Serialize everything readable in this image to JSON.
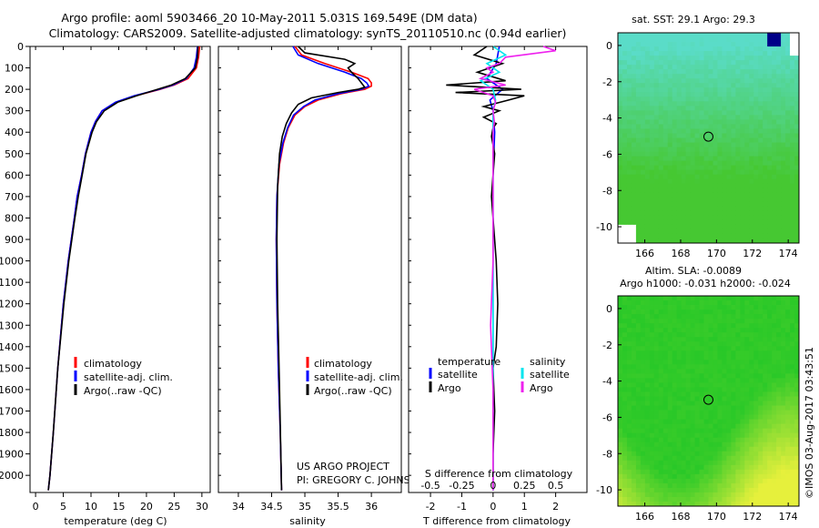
{
  "header": {
    "title_line1": "Argo profile: aoml 5903466_20 10-May-2011 5.031S 169.549E (DM data)",
    "title_line2": "Climatology: CARS2009. Satellite-adjusted climatology: synTS_20110510.nc (0.94d earlier)"
  },
  "colors": {
    "climatology": "#ff0000",
    "satellite_adj": "#0000ff",
    "argo": "#000000",
    "satellite_diff_salinity": "#00e5ee",
    "argo_diff_salinity": "#ee22ee"
  },
  "chart_data": [
    {
      "id": "temperature",
      "type": "line",
      "xlabel": "temperature (deg C)",
      "ylabel": "",
      "xlim": [
        -1,
        31.5
      ],
      "ylim": [
        2080,
        0
      ],
      "xticks": [
        0,
        5,
        10,
        15,
        20,
        25,
        30
      ],
      "xtick_labels": [
        "0",
        "5",
        "10",
        "15",
        "20",
        "25",
        "30"
      ],
      "yticks": [
        0,
        100,
        200,
        300,
        400,
        500,
        600,
        700,
        800,
        900,
        1000,
        1100,
        1200,
        1300,
        1400,
        1500,
        1600,
        1700,
        1800,
        1900,
        2000
      ],
      "ytick_labels": [
        "0",
        "100",
        "200",
        "300",
        "400",
        "500",
        "600",
        "700",
        "800",
        "900",
        "1000",
        "1100",
        "1200",
        "1300",
        "1400",
        "1500",
        "1600",
        "1700",
        "1800",
        "1900",
        "2000"
      ],
      "legend": [
        "climatology",
        "satellite-adj. clim.",
        "Argo(..raw -QC)"
      ],
      "series": [
        {
          "name": "climatology",
          "color": "#ff0000",
          "depth": [
            0,
            50,
            100,
            150,
            180,
            200,
            230,
            260,
            300,
            350,
            400,
            500,
            600,
            700,
            800,
            1000,
            1200,
            1500,
            1800,
            2000,
            2070
          ],
          "values": [
            29.6,
            29.4,
            29.0,
            27.5,
            25.0,
            22.5,
            18.0,
            14.5,
            12.0,
            10.8,
            10.0,
            9.0,
            8.3,
            7.5,
            7.0,
            5.9,
            5.0,
            4.0,
            3.2,
            2.6,
            2.3
          ]
        },
        {
          "name": "satellite-adj. clim.",
          "color": "#0000ff",
          "depth": [
            0,
            50,
            100,
            150,
            180,
            200,
            230,
            260,
            300,
            350,
            400,
            500,
            600,
            700,
            800,
            1000,
            1200,
            1500,
            1800,
            2000,
            2070
          ],
          "values": [
            29.2,
            29.0,
            28.6,
            27.2,
            24.8,
            22.3,
            17.8,
            14.4,
            12.0,
            10.8,
            10.0,
            9.0,
            8.3,
            7.5,
            7.0,
            5.9,
            5.0,
            4.0,
            3.2,
            2.6,
            2.3
          ]
        },
        {
          "name": "Argo(..raw -QC)",
          "color": "#000000",
          "depth": [
            0,
            50,
            100,
            150,
            180,
            200,
            230,
            260,
            300,
            350,
            400,
            500,
            600,
            700,
            800,
            1000,
            1200,
            1500,
            1800,
            2000,
            2070
          ],
          "values": [
            29.3,
            29.2,
            28.8,
            27.0,
            24.5,
            22.0,
            18.2,
            14.8,
            12.4,
            11.0,
            10.2,
            9.1,
            8.4,
            7.7,
            7.1,
            6.0,
            5.1,
            4.0,
            3.2,
            2.6,
            2.3
          ]
        }
      ]
    },
    {
      "id": "salinity",
      "type": "line",
      "xlabel": "salinity",
      "xlim": [
        33.7,
        36.45
      ],
      "ylim": [
        2080,
        0
      ],
      "xticks": [
        34,
        34.5,
        35,
        35.5,
        36
      ],
      "xtick_labels": [
        "34",
        "34.5",
        "35",
        "35.5",
        "36"
      ],
      "legend": [
        "climatology",
        "satellite-adj. clim.",
        "Argo(..raw -QC)"
      ],
      "annotation_line1": "US ARGO PROJECT",
      "annotation_line2": "PI: GREGORY C. JOHNSON",
      "series": [
        {
          "name": "climatology",
          "color": "#ff0000",
          "depth": [
            0,
            40,
            80,
            120,
            150,
            170,
            185,
            200,
            220,
            250,
            280,
            320,
            380,
            450,
            550,
            700,
            900,
            1200,
            1500,
            1800,
            2070
          ],
          "values": [
            34.85,
            34.95,
            35.3,
            35.7,
            35.95,
            36.0,
            36.0,
            35.9,
            35.55,
            35.2,
            35.0,
            34.85,
            34.75,
            34.68,
            34.62,
            34.58,
            34.57,
            34.58,
            34.6,
            34.63,
            34.65
          ]
        },
        {
          "name": "satellite-adj. clim.",
          "color": "#0000ff",
          "depth": [
            0,
            40,
            80,
            120,
            150,
            170,
            185,
            200,
            220,
            250,
            280,
            320,
            380,
            450,
            550,
            700,
            900,
            1200,
            1500,
            1800,
            2070
          ],
          "values": [
            34.82,
            34.9,
            35.2,
            35.6,
            35.85,
            35.93,
            35.96,
            35.85,
            35.5,
            35.15,
            34.98,
            34.83,
            34.74,
            34.67,
            34.61,
            34.58,
            34.57,
            34.58,
            34.6,
            34.63,
            34.65
          ]
        },
        {
          "name": "Argo(..raw -QC)",
          "color": "#000000",
          "depth": [
            0,
            30,
            60,
            80,
            100,
            120,
            150,
            170,
            190,
            200,
            215,
            240,
            270,
            310,
            360,
            420,
            500,
            650,
            900,
            1200,
            1600,
            2070
          ],
          "values": [
            34.9,
            35.0,
            35.6,
            35.75,
            35.65,
            35.7,
            35.8,
            35.85,
            35.9,
            35.8,
            35.5,
            35.1,
            34.9,
            34.8,
            34.72,
            34.66,
            34.62,
            34.59,
            34.58,
            34.59,
            34.62,
            34.65
          ]
        }
      ]
    },
    {
      "id": "differences",
      "type": "line",
      "xlabel": "T difference from climatology",
      "xlabel_top": "S difference from climatology",
      "xlim": [
        -2.7,
        3.0
      ],
      "ylim": [
        2080,
        0
      ],
      "xticks": [
        -2,
        -1,
        0,
        1,
        2
      ],
      "xtick_labels": [
        "-2",
        "-1",
        "0",
        "1",
        "2"
      ],
      "sticks": [
        -0.5,
        -0.25,
        0,
        0.25,
        0.5
      ],
      "stick_labels": [
        "-0.5",
        "-0.25",
        "0",
        "0.25",
        "0.5"
      ],
      "legend_temp_title": "temperature",
      "legend_sal_title": "salinity",
      "legend_temp": [
        "satellite",
        "Argo"
      ],
      "legend_sal": [
        "satellite",
        "Argo"
      ],
      "series": [
        {
          "name": "T satellite",
          "color": "#0000ff",
          "depth": [
            0,
            80,
            150,
            200,
            250,
            300,
            400,
            600,
            1000,
            1500,
            2070
          ],
          "values": [
            0.2,
            0.1,
            -0.2,
            0.3,
            -0.1,
            0.0,
            0.05,
            0.0,
            0.0,
            0.0,
            0.0
          ]
        },
        {
          "name": "T Argo",
          "color": "#000000",
          "depth": [
            0,
            40,
            80,
            120,
            160,
            180,
            200,
            215,
            230,
            250,
            280,
            300,
            330,
            360,
            380,
            420,
            500,
            600,
            700,
            800,
            1000,
            1200,
            1400,
            1500,
            1700,
            1900,
            2070
          ],
          "values": [
            -0.2,
            -0.6,
            0.3,
            -0.5,
            0.4,
            -1.5,
            0.9,
            -1.2,
            1.0,
            0.5,
            -0.3,
            0.2,
            -0.3,
            0.1,
            0.0,
            -0.05,
            0.05,
            0.0,
            -0.05,
            0.0,
            0.1,
            0.15,
            0.1,
            0.0,
            0.05,
            0.0,
            0.0
          ]
        },
        {
          "name": "S satellite",
          "color": "#00e5ee",
          "depth": [
            0,
            40,
            80,
            120,
            160,
            200,
            250,
            300,
            400,
            600,
            1000,
            1500,
            2070
          ],
          "values": [
            0.0,
            0.1,
            -0.05,
            0.05,
            -0.1,
            0.0,
            0.02,
            0.0,
            0.0,
            0.0,
            0.0,
            0.0,
            0.0
          ]
        },
        {
          "name": "S Argo",
          "color": "#ee22ee",
          "depth": [
            0,
            20,
            50,
            80,
            100,
            120,
            150,
            180,
            200,
            230,
            260,
            300,
            350,
            400,
            500,
            700,
            1000,
            1300,
            1600,
            2070
          ],
          "values": [
            0.4,
            0.5,
            0.1,
            0.05,
            -0.05,
            0.0,
            -0.1,
            0.1,
            -0.15,
            0.0,
            0.02,
            0.0,
            0.01,
            0.0,
            0.0,
            0.0,
            0.0,
            -0.02,
            0.0,
            0.0
          ]
        }
      ]
    },
    {
      "id": "sst_map",
      "type": "heatmap",
      "title": "sat. SST: 29.1  Argo: 29.3",
      "xlim": [
        164.5,
        174.6
      ],
      "ylim": [
        -10.9,
        0.7
      ],
      "xticks": [
        166,
        168,
        170,
        172,
        174
      ],
      "xtick_labels": [
        "166",
        "168",
        "170",
        "172",
        "174"
      ],
      "yticks": [
        0,
        -2,
        -4,
        -6,
        -8,
        -10
      ],
      "ytick_labels": [
        "0",
        "-2",
        "-4",
        "-6",
        "-8",
        "-10"
      ],
      "float_position": [
        169.549,
        -5.031
      ]
    },
    {
      "id": "sla_map",
      "type": "heatmap",
      "title_line1": "Altim. SLA: -0.0089",
      "title_line2": "Argo h1000: -0.031 h2000: -0.024",
      "xlim": [
        164.5,
        174.6
      ],
      "ylim": [
        -10.9,
        0.7
      ],
      "xticks": [
        166,
        168,
        170,
        172,
        174
      ],
      "xtick_labels": [
        "166",
        "168",
        "170",
        "172",
        "174"
      ],
      "yticks": [
        0,
        -2,
        -4,
        -6,
        -8,
        -10
      ],
      "ytick_labels": [
        "0",
        "-2",
        "-4",
        "-6",
        "-8",
        "-10"
      ],
      "float_position": [
        169.549,
        -5.031
      ]
    }
  ],
  "footer": {
    "stamp": "©IMOS 03-Aug-2017 03:43:51"
  }
}
